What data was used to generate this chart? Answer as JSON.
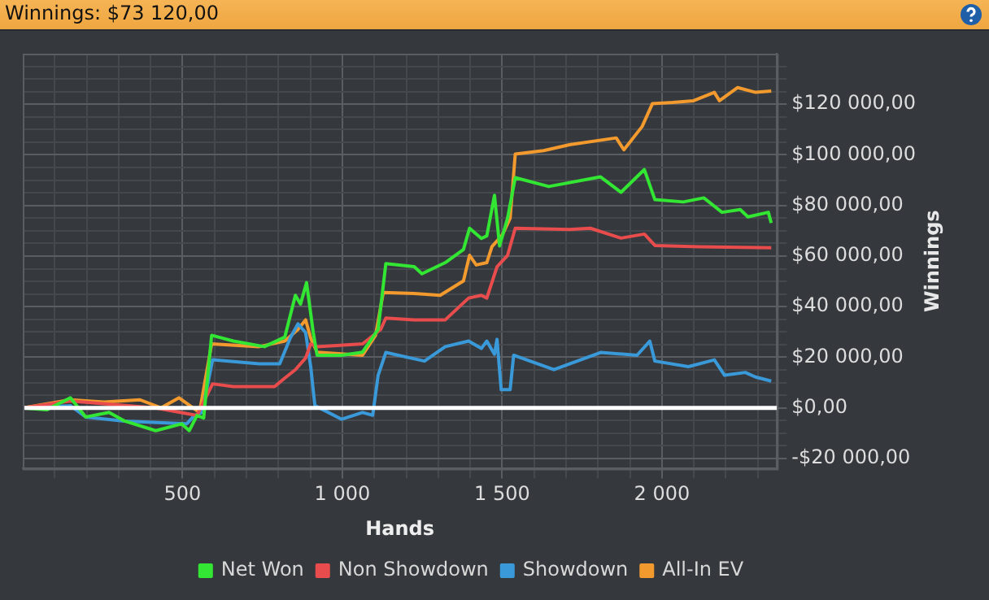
{
  "chart_data": {
    "type": "line",
    "title": "Winnings: $73 120,00",
    "xlabel": "Hands",
    "ylabel": "Winnings",
    "legend": "bottom",
    "grid": true,
    "xlim": [
      0,
      2360
    ],
    "ylim": [
      -24000,
      140000
    ],
    "xticks": [
      {
        "value": 100,
        "label": null
      },
      {
        "value": 200,
        "label": null
      },
      {
        "value": 300,
        "label": null
      },
      {
        "value": 400,
        "label": null
      },
      {
        "value": 500,
        "label": "500"
      },
      {
        "value": 600,
        "label": null
      },
      {
        "value": 700,
        "label": null
      },
      {
        "value": 800,
        "label": null
      },
      {
        "value": 900,
        "label": null
      },
      {
        "value": 1000,
        "label": "1 000"
      },
      {
        "value": 1100,
        "label": null
      },
      {
        "value": 1200,
        "label": null
      },
      {
        "value": 1300,
        "label": null
      },
      {
        "value": 1400,
        "label": null
      },
      {
        "value": 1500,
        "label": "1 500"
      },
      {
        "value": 1600,
        "label": null
      },
      {
        "value": 1700,
        "label": null
      },
      {
        "value": 1800,
        "label": null
      },
      {
        "value": 1900,
        "label": null
      },
      {
        "value": 2000,
        "label": "2 000"
      },
      {
        "value": 2100,
        "label": null
      },
      {
        "value": 2200,
        "label": null
      },
      {
        "value": 2300,
        "label": null
      }
    ],
    "yticks": [
      {
        "value": -20000,
        "label": "-$20 000,00"
      },
      {
        "value": -15000,
        "label": null
      },
      {
        "value": -10000,
        "label": null
      },
      {
        "value": -5000,
        "label": null
      },
      {
        "value": 0,
        "label": "$0,00"
      },
      {
        "value": 5000,
        "label": null
      },
      {
        "value": 10000,
        "label": null
      },
      {
        "value": 15000,
        "label": null
      },
      {
        "value": 20000,
        "label": "$20 000,00"
      },
      {
        "value": 25000,
        "label": null
      },
      {
        "value": 30000,
        "label": null
      },
      {
        "value": 35000,
        "label": null
      },
      {
        "value": 40000,
        "label": "$40 000,00"
      },
      {
        "value": 45000,
        "label": null
      },
      {
        "value": 50000,
        "label": null
      },
      {
        "value": 55000,
        "label": null
      },
      {
        "value": 60000,
        "label": "$60 000,00"
      },
      {
        "value": 65000,
        "label": null
      },
      {
        "value": 70000,
        "label": null
      },
      {
        "value": 75000,
        "label": null
      },
      {
        "value": 80000,
        "label": "$80 000,00"
      },
      {
        "value": 85000,
        "label": null
      },
      {
        "value": 90000,
        "label": null
      },
      {
        "value": 95000,
        "label": null
      },
      {
        "value": 100000,
        "label": "$100 000,00"
      },
      {
        "value": 105000,
        "label": null
      },
      {
        "value": 110000,
        "label": null
      },
      {
        "value": 115000,
        "label": null
      },
      {
        "value": 120000,
        "label": "$120 000,00"
      },
      {
        "value": 125000,
        "label": null
      },
      {
        "value": 130000,
        "label": null
      },
      {
        "value": 135000,
        "label": null
      }
    ],
    "ref_lines": [
      {
        "axis": "y",
        "value": 0,
        "color": "#ffffff"
      }
    ],
    "series": [
      {
        "name": "Net Won",
        "color": "#33e633",
        "x": [
          0,
          76,
          149,
          197,
          270,
          319,
          416,
          497,
          521,
          545,
          566,
          591,
          659,
          756,
          820,
          853,
          869,
          888,
          909,
          921,
          998,
          1063,
          1112,
          1136,
          1225,
          1249,
          1322,
          1379,
          1398,
          1435,
          1452,
          1476,
          1492,
          1517,
          1541,
          1646,
          1808,
          1872,
          1945,
          1978,
          2067,
          2131,
          2188,
          2245,
          2269,
          2333,
          2342
        ],
        "values": [
          0,
          -700,
          4000,
          -3600,
          -1800,
          -5200,
          -9000,
          -6300,
          -9000,
          -3000,
          -4000,
          28700,
          26400,
          24200,
          28000,
          44500,
          41000,
          49500,
          29800,
          20800,
          20800,
          22000,
          31000,
          57000,
          55800,
          53000,
          57400,
          62600,
          71000,
          67000,
          68000,
          84000,
          64000,
          75000,
          91000,
          87500,
          91300,
          85200,
          94200,
          82300,
          81400,
          83000,
          77300,
          78400,
          75500,
          77300,
          73100
        ]
      },
      {
        "name": "Non Showdown",
        "color": "#e84c4c",
        "x": [
          0,
          149,
          416,
          545,
          594,
          659,
          788,
          820,
          853,
          885,
          901,
          921,
          1063,
          1120,
          1136,
          1225,
          1322,
          1395,
          1435,
          1452,
          1484,
          1517,
          1541,
          1711,
          1776,
          1872,
          1945,
          1978,
          2115,
          2342
        ],
        "values": [
          0,
          2700,
          0,
          -3000,
          9500,
          8400,
          8400,
          11800,
          15100,
          19700,
          25300,
          24200,
          25300,
          31000,
          35500,
          34800,
          34800,
          43400,
          44500,
          43400,
          55800,
          60300,
          71000,
          70500,
          71000,
          67100,
          68700,
          64200,
          63700,
          63300
        ]
      },
      {
        "name": "Showdown",
        "color": "#3a9ad9",
        "x": [
          0,
          149,
          197,
          319,
          416,
          513,
          537,
          561,
          594,
          740,
          804,
          837,
          861,
          885,
          901,
          914,
          998,
          1063,
          1095,
          1112,
          1136,
          1257,
          1322,
          1395,
          1435,
          1452,
          1476,
          1484,
          1497,
          1525,
          1536,
          1662,
          1808,
          1922,
          1962,
          1978,
          2083,
          2164,
          2196,
          2261,
          2293,
          2342
        ],
        "values": [
          0,
          900,
          -3600,
          -5200,
          null,
          -6300,
          -3000,
          -1800,
          19000,
          17400,
          17400,
          27600,
          33200,
          29800,
          16300,
          900,
          -4500,
          -1800,
          -2900,
          12900,
          21900,
          18500,
          24200,
          26400,
          23500,
          26400,
          21200,
          27100,
          7200,
          7200,
          20800,
          15100,
          21900,
          20800,
          26400,
          18500,
          16300,
          19000,
          12900,
          14000,
          12200,
          10600
        ]
      },
      {
        "name": "All-In EV",
        "color": "#f39a2e",
        "x": [
          0,
          149,
          254,
          367,
          432,
          489,
          553,
          591,
          740,
          820,
          861,
          885,
          901,
          921,
          1063,
          1104,
          1128,
          1225,
          1306,
          1379,
          1398,
          1419,
          1452,
          1468,
          1500,
          1525,
          1541,
          1630,
          1711,
          1857,
          1881,
          1938,
          1970,
          2034,
          2099,
          2164,
          2180,
          2237,
          2293,
          2342
        ],
        "values": [
          0,
          3200,
          2300,
          3200,
          0,
          4000,
          -1800,
          25300,
          24200,
          26400,
          31000,
          34800,
          27600,
          22000,
          20800,
          28700,
          45600,
          45200,
          44500,
          50200,
          60300,
          56500,
          57400,
          63700,
          68200,
          75000,
          100300,
          101700,
          104000,
          106700,
          102000,
          111200,
          120200,
          120700,
          121400,
          124700,
          121400,
          126600,
          124700,
          125200
        ]
      }
    ]
  }
}
